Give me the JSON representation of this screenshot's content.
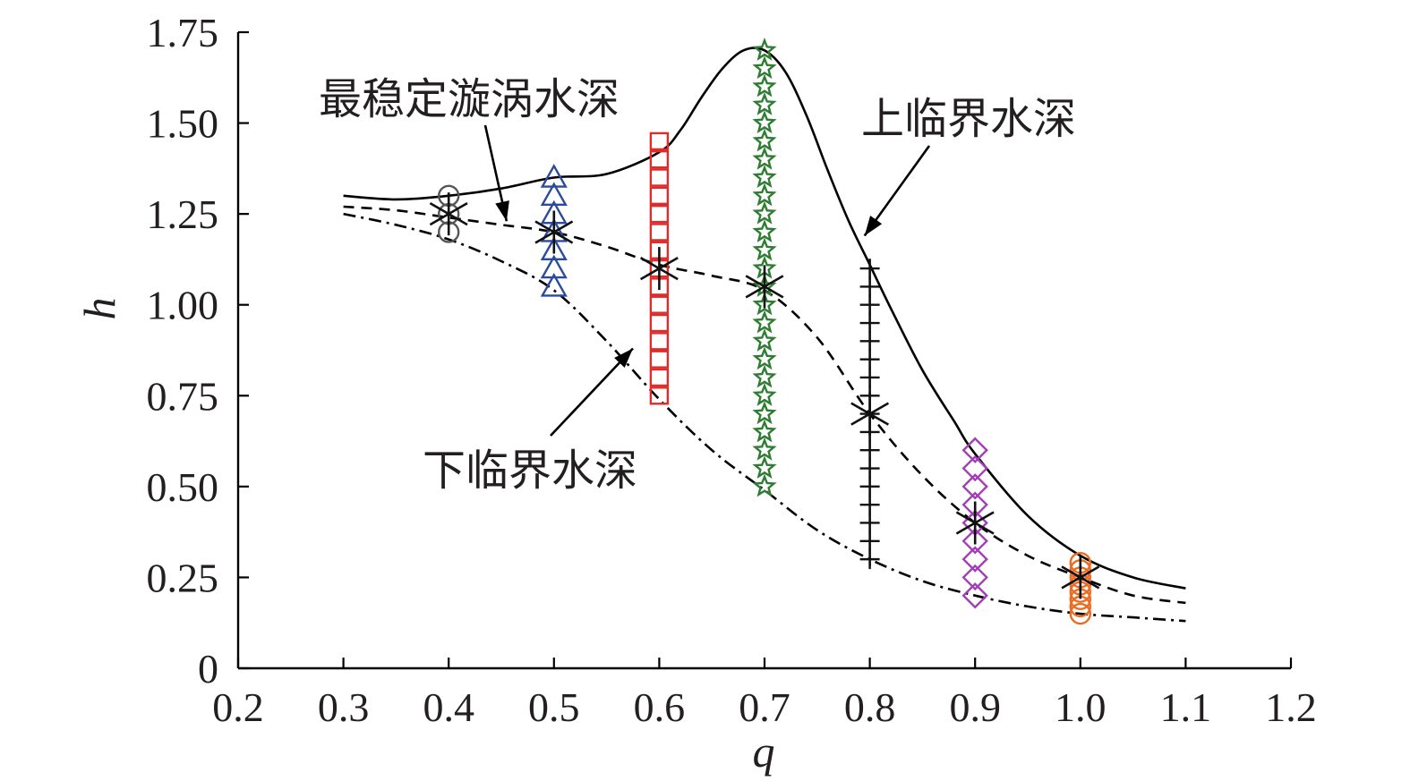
{
  "chart_data": {
    "type": "scatter",
    "xlabel": "q",
    "ylabel": "h",
    "xlim": [
      0.2,
      1.2
    ],
    "ylim": [
      0,
      1.75
    ],
    "x_ticks": [
      "0.2",
      "0.3",
      "0.4",
      "0.5",
      "0.6",
      "0.7",
      "0.8",
      "0.9",
      "1.0",
      "1.1",
      "1.2"
    ],
    "y_ticks": [
      "0",
      "0.25",
      "0.50",
      "0.75",
      "1.00",
      "1.25",
      "1.50",
      "1.75"
    ],
    "grid": false,
    "curves": [
      {
        "name": "上临界水深",
        "style": "solid",
        "x": [
          0.3,
          0.35,
          0.4,
          0.45,
          0.5,
          0.55,
          0.6,
          0.62,
          0.64,
          0.66,
          0.68,
          0.7,
          0.72,
          0.74,
          0.76,
          0.78,
          0.8,
          0.82,
          0.85,
          0.88,
          0.9,
          0.95,
          1.0,
          1.05,
          1.1
        ],
        "y": [
          1.3,
          1.29,
          1.3,
          1.32,
          1.35,
          1.36,
          1.42,
          1.48,
          1.57,
          1.65,
          1.7,
          1.7,
          1.64,
          1.52,
          1.37,
          1.23,
          1.11,
          0.99,
          0.82,
          0.68,
          0.59,
          0.42,
          0.31,
          0.25,
          0.22
        ]
      },
      {
        "name": "最稳定漩涡水深",
        "style": "dashed",
        "x": [
          0.3,
          0.35,
          0.4,
          0.45,
          0.5,
          0.55,
          0.6,
          0.65,
          0.7,
          0.75,
          0.8,
          0.85,
          0.9,
          0.95,
          1.0,
          1.05,
          1.1
        ],
        "y": [
          1.27,
          1.26,
          1.24,
          1.22,
          1.2,
          1.16,
          1.11,
          1.08,
          1.04,
          0.91,
          0.7,
          0.53,
          0.4,
          0.31,
          0.25,
          0.2,
          0.18
        ]
      },
      {
        "name": "下临界水深",
        "style": "dashdot",
        "x": [
          0.3,
          0.35,
          0.4,
          0.45,
          0.5,
          0.55,
          0.6,
          0.65,
          0.7,
          0.75,
          0.8,
          0.85,
          0.9,
          0.95,
          1.0,
          1.05,
          1.1
        ],
        "y": [
          1.25,
          1.22,
          1.18,
          1.12,
          1.04,
          0.9,
          0.74,
          0.6,
          0.49,
          0.38,
          0.3,
          0.24,
          0.2,
          0.17,
          0.15,
          0.14,
          0.13
        ]
      }
    ],
    "marker_series": [
      {
        "q": 0.4,
        "marker": "circle",
        "color": "#555555",
        "h": [
          1.2,
          1.25,
          1.3
        ]
      },
      {
        "q": 0.5,
        "marker": "triangle",
        "color": "#2b4c9b",
        "h": [
          1.05,
          1.1,
          1.15,
          1.2,
          1.25,
          1.3,
          1.35
        ]
      },
      {
        "q": 0.6,
        "marker": "square",
        "color": "#e02b2b",
        "h": [
          0.75,
          0.8,
          0.85,
          0.9,
          0.95,
          1.0,
          1.05,
          1.1,
          1.15,
          1.2,
          1.25,
          1.3,
          1.35,
          1.4,
          1.45
        ]
      },
      {
        "q": 0.7,
        "marker": "star",
        "color": "#2e7d32",
        "h": [
          0.5,
          0.55,
          0.6,
          0.65,
          0.7,
          0.75,
          0.8,
          0.85,
          0.9,
          0.95,
          1.0,
          1.05,
          1.1,
          1.15,
          1.2,
          1.25,
          1.3,
          1.35,
          1.4,
          1.45,
          1.5,
          1.55,
          1.6,
          1.65,
          1.7
        ]
      },
      {
        "q": 0.8,
        "marker": "plus",
        "color": "#111111",
        "h": [
          0.3,
          0.35,
          0.4,
          0.45,
          0.5,
          0.55,
          0.6,
          0.65,
          0.7,
          0.75,
          0.8,
          0.85,
          0.9,
          0.95,
          1.0,
          1.05,
          1.1
        ]
      },
      {
        "q": 0.9,
        "marker": "diamond",
        "color": "#a23fb5",
        "h": [
          0.2,
          0.25,
          0.3,
          0.35,
          0.4,
          0.45,
          0.5,
          0.55,
          0.6
        ]
      },
      {
        "q": 1.0,
        "marker": "circle",
        "color": "#ee6a1f",
        "h": [
          0.15,
          0.17,
          0.19,
          0.21,
          0.23,
          0.25,
          0.27,
          0.29
        ]
      }
    ],
    "stable_points": {
      "marker": "asterisk",
      "color": "#111111",
      "q": [
        0.4,
        0.5,
        0.6,
        0.7,
        0.8,
        0.9,
        1.0
      ],
      "h": [
        1.25,
        1.2,
        1.1,
        1.05,
        0.7,
        0.4,
        0.25
      ]
    },
    "annotations": [
      {
        "text": "最稳定漩涡水深",
        "anchor_q": 0.4,
        "anchor_h": 1.55,
        "target_q": 0.455,
        "target_h": 1.23
      },
      {
        "text": "上临界水深",
        "anchor_q": 0.8,
        "anchor_h": 1.5,
        "target_q": 0.795,
        "target_h": 1.19
      },
      {
        "text": "下临界水深",
        "anchor_q": 0.5,
        "anchor_h": 0.58,
        "target_q": 0.575,
        "target_h": 0.88
      }
    ]
  }
}
